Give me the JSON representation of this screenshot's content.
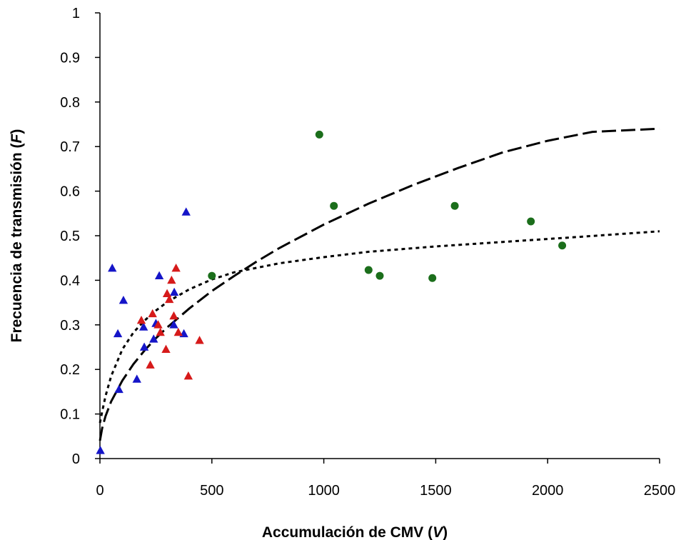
{
  "chart_data": {
    "type": "scatter",
    "title": "",
    "xlabel_main": "Accumulación de CMV (",
    "xlabel_var": "V",
    "xlabel_end": ")",
    "ylabel_main": "Frecuencia de transmisión (",
    "ylabel_var": "F",
    "ylabel_end": ")",
    "xlim": [
      0,
      2500
    ],
    "ylim": [
      0,
      1
    ],
    "xticks": [
      0,
      500,
      1000,
      1500,
      2000,
      2500
    ],
    "xtick_labels": [
      "0",
      "500",
      "1000",
      "1500",
      "2000",
      "2500"
    ],
    "yticks": [
      0,
      0.1,
      0.2,
      0.3,
      0.4,
      0.5,
      0.6,
      0.7,
      0.8,
      0.9,
      1
    ],
    "ytick_labels": [
      "0",
      "0.1",
      "0.2",
      "0.3",
      "0.4",
      "0.5",
      "0.6",
      "0.7",
      "0.8",
      "0.9",
      "1"
    ],
    "grid": false,
    "series": [
      {
        "marker": "triangle",
        "color": "#1515c8",
        "points": [
          [
            2,
            0.018
          ],
          [
            55,
            0.427
          ],
          [
            80,
            0.28
          ],
          [
            85,
            0.155
          ],
          [
            105,
            0.355
          ],
          [
            165,
            0.178
          ],
          [
            195,
            0.295
          ],
          [
            198,
            0.25
          ],
          [
            240,
            0.268
          ],
          [
            250,
            0.303
          ],
          [
            265,
            0.41
          ],
          [
            330,
            0.3
          ],
          [
            332,
            0.373
          ],
          [
            375,
            0.28
          ],
          [
            385,
            0.553
          ]
        ]
      },
      {
        "marker": "triangle",
        "color": "#d61a1a",
        "points": [
          [
            185,
            0.31
          ],
          [
            225,
            0.21
          ],
          [
            235,
            0.325
          ],
          [
            260,
            0.3
          ],
          [
            270,
            0.283
          ],
          [
            295,
            0.245
          ],
          [
            300,
            0.37
          ],
          [
            310,
            0.357
          ],
          [
            320,
            0.4
          ],
          [
            330,
            0.32
          ],
          [
            340,
            0.427
          ],
          [
            350,
            0.283
          ],
          [
            395,
            0.185
          ],
          [
            445,
            0.265
          ]
        ]
      },
      {
        "marker": "circle",
        "color": "#1b6e1b",
        "points": [
          [
            500,
            0.41
          ],
          [
            980,
            0.727
          ],
          [
            1045,
            0.567
          ],
          [
            1200,
            0.423
          ],
          [
            1250,
            0.41
          ],
          [
            1485,
            0.405
          ],
          [
            1585,
            0.567
          ],
          [
            1925,
            0.532
          ],
          [
            2065,
            0.478
          ]
        ]
      }
    ],
    "fit_curves": [
      {
        "style": "dashed",
        "description_hidden": true,
        "points": [
          [
            0,
            0.04
          ],
          [
            10,
            0.068
          ],
          [
            25,
            0.095
          ],
          [
            50,
            0.128
          ],
          [
            100,
            0.175
          ],
          [
            150,
            0.212
          ],
          [
            200,
            0.243
          ],
          [
            250,
            0.27
          ],
          [
            300,
            0.294
          ],
          [
            400,
            0.337
          ],
          [
            500,
            0.376
          ],
          [
            600,
            0.41
          ],
          [
            700,
            0.442
          ],
          [
            800,
            0.472
          ],
          [
            1000,
            0.525
          ],
          [
            1200,
            0.572
          ],
          [
            1400,
            0.614
          ],
          [
            1600,
            0.652
          ],
          [
            1800,
            0.687
          ],
          [
            2000,
            0.713
          ],
          [
            2200,
            0.733
          ],
          [
            2500,
            0.74
          ]
        ]
      },
      {
        "style": "dotted",
        "points": [
          [
            0,
            0.08
          ],
          [
            10,
            0.105
          ],
          [
            25,
            0.14
          ],
          [
            50,
            0.185
          ],
          [
            100,
            0.245
          ],
          [
            150,
            0.283
          ],
          [
            200,
            0.31
          ],
          [
            250,
            0.332
          ],
          [
            300,
            0.351
          ],
          [
            400,
            0.38
          ],
          [
            500,
            0.402
          ],
          [
            600,
            0.418
          ],
          [
            800,
            0.438
          ],
          [
            1000,
            0.452
          ],
          [
            1200,
            0.464
          ],
          [
            1500,
            0.476
          ],
          [
            1800,
            0.486
          ],
          [
            2100,
            0.496
          ],
          [
            2500,
            0.51
          ]
        ]
      }
    ]
  }
}
